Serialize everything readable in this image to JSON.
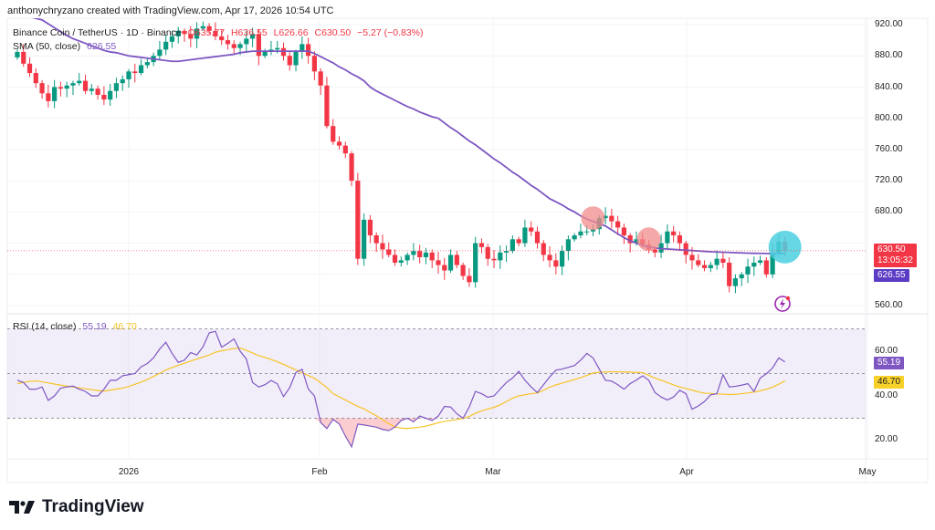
{
  "attribution": "anthonychryzano created with TradingView.com, Apr 17, 2026 10:54 UTC",
  "legend": {
    "symbol": "Binance Coin / TetherUS · 1D · Binance",
    "open": "O635.77",
    "high": "H636.55",
    "low": "L626.66",
    "close": "C630.50",
    "change": "−5.27 (−0.83%)",
    "sma_label": "SMA (50, close)",
    "sma_value": "626.55",
    "rsi_label": "RSI (14, close)",
    "rsi_value": "55.19",
    "rsi_ma_value": "46.70"
  },
  "price_axis": [
    "920.00",
    "880.00",
    "840.00",
    "800.00",
    "760.00",
    "720.00",
    "680.00",
    "560.00"
  ],
  "rsi_axis": [
    "60.00",
    "40.00",
    "20.00"
  ],
  "badges": {
    "last_price": "630.50",
    "countdown": "13:05:32",
    "sma": "626.55",
    "rsi": "55.19",
    "rsi_ma": "46.70"
  },
  "date_axis": [
    "2026",
    "Feb",
    "Mar",
    "Apr",
    "May"
  ],
  "logo_text": "TradingView",
  "colors": {
    "up": "#089981",
    "down": "#f23645",
    "sma": "#7e57c2",
    "rsi": "#7e57c2",
    "rsi_ma": "#f7c325",
    "highlight_red": "#f28b8b",
    "highlight_cyan": "#4dd0e1"
  },
  "chart_data": {
    "type": "candlestick",
    "title": "Binance Coin / TetherUS · 1D · Binance",
    "start_date": "2025-12-14",
    "end_date": "2026-04-17",
    "first_open": 878,
    "ylim": [
      545,
      930
    ],
    "closes": [
      885,
      870,
      858,
      845,
      832,
      822,
      840,
      838,
      842,
      845,
      848,
      835,
      838,
      830,
      824,
      835,
      845,
      850,
      860,
      858,
      868,
      872,
      880,
      888,
      898,
      905,
      912,
      908,
      902,
      915,
      918,
      912,
      905,
      900,
      895,
      890,
      895,
      902,
      908,
      880,
      885,
      888,
      890,
      880,
      868,
      885,
      895,
      880,
      860,
      842,
      790,
      770,
      765,
      755,
      720,
      620,
      670,
      650,
      640,
      632,
      625,
      615,
      618,
      625,
      630,
      622,
      628,
      618,
      612,
      605,
      625,
      612,
      598,
      590,
      640,
      635,
      620,
      618,
      628,
      630,
      645,
      640,
      660,
      655,
      640,
      625,
      618,
      610,
      630,
      645,
      650,
      655,
      655,
      658,
      672,
      675,
      668,
      660,
      650,
      640,
      645,
      638,
      632,
      628,
      640,
      655,
      650,
      640,
      625,
      618,
      612,
      608,
      612,
      620,
      615,
      585,
      595,
      600,
      610,
      615,
      618,
      600,
      628,
      642,
      630.5
    ],
    "sma50": [
      940,
      935,
      930,
      928,
      926,
      921,
      916,
      911,
      906,
      902,
      899,
      896,
      893,
      890,
      887,
      885,
      884,
      882,
      880,
      879,
      878,
      877,
      876,
      875,
      874,
      873,
      873,
      874,
      875,
      876,
      877,
      878,
      879,
      880,
      881,
      882,
      884,
      885,
      886,
      886,
      886,
      886,
      886,
      886,
      886,
      886,
      886,
      886,
      883,
      879,
      875,
      871,
      866,
      862,
      857,
      853,
      848,
      840,
      835,
      831,
      827,
      823,
      819,
      815,
      812,
      808,
      805,
      802,
      800,
      794,
      788,
      783,
      777,
      771,
      766,
      760,
      754,
      748,
      743,
      737,
      731,
      726,
      720,
      714,
      709,
      703,
      697,
      693,
      689,
      684,
      680,
      675,
      671,
      668,
      665,
      662,
      657,
      652,
      647,
      643,
      640,
      637,
      635,
      634,
      633,
      632.5,
      632,
      631.5,
      631,
      630.5,
      630,
      629.5,
      629,
      628.7,
      628.4,
      628.1,
      627.8,
      627.5,
      627.2,
      627,
      626.9,
      626.8,
      626.7,
      626.6,
      626.55
    ],
    "rsi": [
      47,
      46,
      43,
      43,
      44,
      38,
      40,
      43.5,
      44,
      44.4,
      43,
      42,
      40,
      40,
      43,
      47,
      47,
      49,
      49.5,
      50,
      53,
      54.5,
      57,
      61,
      64,
      59,
      55,
      56,
      59.4,
      58.3,
      62,
      68.2,
      68.9,
      61.8,
      63.5,
      65.5,
      60,
      56.5,
      46,
      44,
      45,
      46.9,
      45.4,
      39.7,
      43.7,
      50.5,
      51.9,
      43.1,
      40,
      28.1,
      25.4,
      29.5,
      27.5,
      22,
      17.2,
      27.4,
      27,
      26.5,
      26,
      25,
      24.5,
      26,
      29,
      30,
      28.4,
      31,
      30,
      29,
      31,
      35.3,
      35,
      32,
      30,
      35,
      42,
      41,
      39.4,
      40,
      43,
      46,
      48,
      51,
      47,
      44,
      41.5,
      45,
      48.5,
      51.5,
      52,
      52.8,
      53.6,
      56,
      59,
      57,
      52,
      47,
      46.6,
      45,
      43,
      45.5,
      47.1,
      49,
      47,
      41.5,
      39.5,
      38.2,
      39.5,
      42.5,
      41,
      34,
      35.5,
      37.5,
      40.5,
      41,
      49.5,
      44,
      44.3,
      44.8,
      45.5,
      42,
      48,
      49.9,
      52.5,
      57,
      55.19
    ],
    "rsi_ma": [
      45.5,
      46,
      46.5,
      46.7,
      46.3,
      45.8,
      45.3,
      44.8,
      44.4,
      44,
      43.6,
      43.2,
      42.8,
      42.4,
      42.1,
      42.6,
      43,
      43.5,
      44.2,
      45.2,
      46.2,
      47.3,
      48.7,
      50.1,
      51.6,
      52.7,
      53.7,
      54.6,
      55.6,
      56.5,
      57.4,
      58.3,
      59.5,
      60.2,
      60.7,
      61.2,
      61.4,
      60.4,
      59.2,
      58,
      57.2,
      56.3,
      55.3,
      54.1,
      52.9,
      51.6,
      50.4,
      49.1,
      47.9,
      45.9,
      43.7,
      41,
      39.6,
      38.2,
      36.7,
      35.3,
      34.2,
      32.6,
      31.1,
      29.4,
      27.6,
      26.1,
      25.6,
      25.4,
      25.7,
      26,
      26.5,
      27.2,
      28,
      28.6,
      29,
      29.4,
      29.9,
      30.8,
      32.2,
      33.3,
      34.1,
      34.9,
      36,
      37.5,
      39,
      40,
      40.5,
      41,
      41.3,
      42.5,
      43.9,
      44.9,
      45.7,
      46.5,
      47.3,
      48.2,
      49.2,
      50.2,
      50.6,
      50.7,
      50.8,
      50.8,
      50.7,
      50.6,
      50.5,
      50.4,
      49.2,
      48,
      47,
      46,
      44.9,
      44,
      43.3,
      42.6,
      41.8,
      41.2,
      41.1,
      40.9,
      40.8,
      40.6,
      40.7,
      41,
      41.3,
      41.7,
      42.3,
      43,
      43.9,
      45.2,
      46.7
    ],
    "rsi_levels": [
      70,
      50,
      30
    ],
    "last_price": 630.5,
    "highlights": [
      {
        "date": "2026-03-17",
        "price": 672,
        "color": "red"
      },
      {
        "date": "2026-03-26",
        "price": 645,
        "color": "red"
      },
      {
        "date": "2026-04-17",
        "price": 635,
        "color": "cyan"
      }
    ],
    "xticks": [
      "2026",
      "Feb",
      "Mar",
      "Apr",
      "May"
    ],
    "yticks": [
      560,
      680,
      720,
      760,
      800,
      840,
      880,
      920
    ],
    "grid": true
  }
}
